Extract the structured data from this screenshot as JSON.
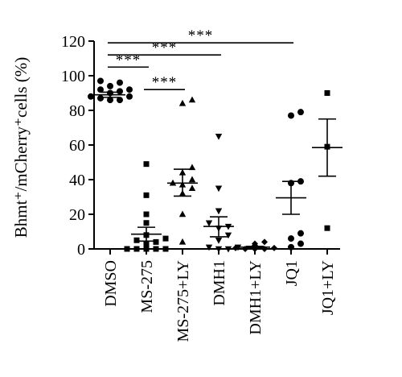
{
  "chart_data": {
    "type": "scatter",
    "ylabel": "Bhmt⁺/mCherry⁺cells (%)",
    "ylim": [
      0,
      120
    ],
    "yticks": [
      0,
      20,
      40,
      60,
      80,
      100,
      120
    ],
    "categories": [
      "DMSO",
      "MS-275",
      "MS-275+LY",
      "DMH1",
      "DMH1+LY",
      "JQ1",
      "JQ1+LY"
    ],
    "groups": [
      {
        "category": "DMSO",
        "marker": "circle",
        "mean": 89,
        "sem_low": 87.5,
        "sem_high": 90.5,
        "points": [
          97,
          96,
          94,
          92,
          91,
          90,
          88,
          88,
          87,
          86,
          86,
          92
        ]
      },
      {
        "category": "MS-275",
        "marker": "square",
        "mean": 8.5,
        "sem_low": 4.5,
        "sem_high": 12.5,
        "points": [
          49,
          31,
          20,
          15,
          8,
          6,
          5,
          4,
          3,
          2,
          1,
          1,
          0.5,
          0,
          0,
          0,
          0,
          0
        ]
      },
      {
        "category": "MS-275+LY",
        "marker": "triangle",
        "mean": 38,
        "sem_low": 30.5,
        "sem_high": 46,
        "points": [
          86,
          84,
          47,
          44,
          40,
          38,
          37,
          35,
          32,
          20,
          4
        ]
      },
      {
        "category": "DMH1",
        "marker": "triangle-down",
        "mean": 13,
        "sem_low": 7,
        "sem_high": 18.5,
        "points": [
          65,
          35,
          22,
          15,
          13,
          12,
          8,
          5,
          1,
          1,
          0,
          0
        ]
      },
      {
        "category": "DMH1+LY",
        "marker": "diamond",
        "mean": 1,
        "sem_low": 0.3,
        "sem_high": 1.5,
        "points": [
          4,
          3,
          2,
          1.5,
          1,
          1,
          0.5,
          0.5,
          0,
          0,
          0
        ]
      },
      {
        "category": "JQ1",
        "marker": "circle",
        "mean": 29.5,
        "sem_low": 20,
        "sem_high": 39,
        "points": [
          79,
          77,
          39,
          38,
          9,
          6,
          3,
          1
        ]
      },
      {
        "category": "JQ1+LY",
        "marker": "square",
        "mean": 58.5,
        "sem_low": 42,
        "sem_high": 75,
        "points": [
          90,
          59,
          12
        ]
      }
    ],
    "significance": [
      {
        "from": "DMSO",
        "to": "JQ1",
        "level": 119,
        "label": "***"
      },
      {
        "from": "DMSO",
        "to": "DMH1",
        "level": 112,
        "label": "***"
      },
      {
        "from": "DMSO",
        "to": "MS-275",
        "level": 105,
        "label": "***"
      },
      {
        "from": "MS-275",
        "to": "MS-275+LY",
        "level": 92,
        "label": "***"
      }
    ]
  }
}
